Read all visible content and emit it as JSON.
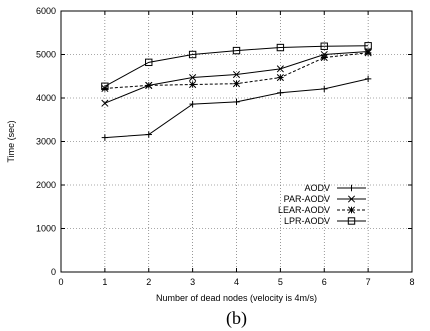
{
  "chart_data": {
    "type": "line",
    "xlabel": "Number of dead nodes (velocity is 4m/s)",
    "ylabel": "Time (sec)",
    "caption": "(b)",
    "xlim": [
      0,
      8
    ],
    "ylim": [
      0,
      6000
    ],
    "xticks": [
      "0",
      "1",
      "2",
      "3",
      "4",
      "5",
      "6",
      "7",
      "8"
    ],
    "yticks": [
      "0",
      "1000",
      "2000",
      "3000",
      "4000",
      "5000",
      "6000"
    ],
    "grid": true,
    "legend_position": "bottom-right",
    "x": [
      1,
      2,
      3,
      4,
      5,
      6,
      7
    ],
    "series": [
      {
        "name": "AODV",
        "marker": "plus",
        "dash": "solid",
        "values": [
          3090,
          3160,
          3860,
          3910,
          4120,
          4210,
          4440
        ]
      },
      {
        "name": "PAR-AODV",
        "marker": "cross",
        "dash": "solid",
        "values": [
          3880,
          4290,
          4470,
          4540,
          4670,
          5000,
          5070
        ]
      },
      {
        "name": "LEAR-AODV",
        "marker": "star",
        "dash": "dashed",
        "values": [
          4220,
          4290,
          4310,
          4330,
          4470,
          4930,
          5040
        ]
      },
      {
        "name": "LPR-AODV",
        "marker": "square",
        "dash": "solid",
        "values": [
          4270,
          4820,
          5000,
          5090,
          5160,
          5190,
          5200
        ]
      }
    ]
  }
}
